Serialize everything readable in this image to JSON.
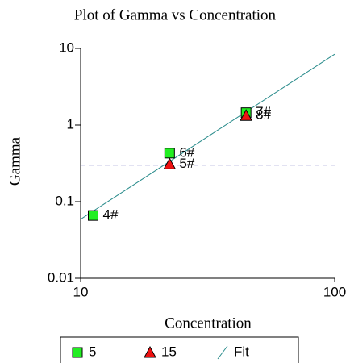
{
  "chart_data": {
    "type": "scatter",
    "title": "Plot of Gamma vs Concentration",
    "x_label": "Concentration",
    "y_label": "Gamma",
    "log_x": true,
    "log_y": true,
    "xlim": [
      10,
      100
    ],
    "xticks": [
      10,
      100
    ],
    "ylim": [
      0.01,
      10
    ],
    "yticks": [
      10,
      1,
      0.1,
      0.01
    ],
    "series": [
      {
        "name": "5",
        "color": "#22ee22",
        "marker": "square",
        "x": [
          11.2,
          22.4,
          44.8
        ],
        "values": [
          0.066,
          0.43,
          1.45
        ],
        "labels": [
          "4#",
          "6#",
          "7#"
        ]
      },
      {
        "name": "15",
        "color": "#ee1111",
        "marker": "triangle",
        "x": [
          22.4,
          44.8
        ],
        "values": [
          0.31,
          1.33
        ],
        "labels": [
          "5#",
          "8#"
        ]
      }
    ],
    "fit": {
      "name": "Fit",
      "color": "#2a8c8c",
      "x": [
        10,
        100
      ],
      "values": [
        0.059,
        8.4
      ]
    },
    "hline": {
      "value": 0.3,
      "color": "#1a1a9a"
    },
    "legend": "bottom"
  }
}
